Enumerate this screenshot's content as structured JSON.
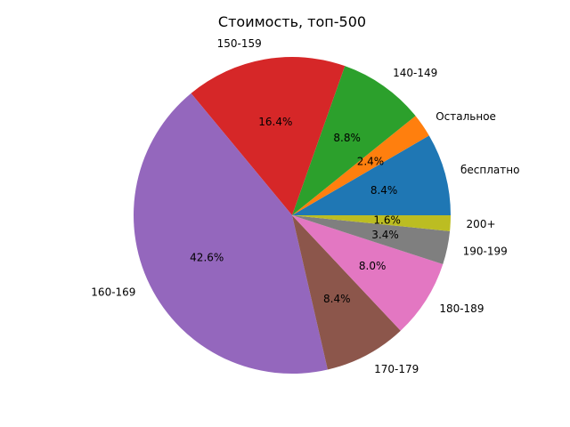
{
  "chart_data": {
    "type": "pie",
    "title": "Стоимость, топ-500",
    "start_angle_deg": 0,
    "direction": "counterclockwise",
    "slices": [
      {
        "label": "бесплатно",
        "value": 8.4,
        "pct_label": "8.4%",
        "color": "#1f77b4"
      },
      {
        "label": "Остальное",
        "value": 2.4,
        "pct_label": "2.4%",
        "color": "#ff7f0e"
      },
      {
        "label": "140-149",
        "value": 8.8,
        "pct_label": "8.8%",
        "color": "#2ca02c"
      },
      {
        "label": "150-159",
        "value": 16.4,
        "pct_label": "16.4%",
        "color": "#d62728"
      },
      {
        "label": "160-169",
        "value": 42.6,
        "pct_label": "42.6%",
        "color": "#9467bd"
      },
      {
        "label": "170-179",
        "value": 8.4,
        "pct_label": "8.4%",
        "color": "#8c564b"
      },
      {
        "label": "180-189",
        "value": 8.0,
        "pct_label": "8.0%",
        "color": "#e377c2"
      },
      {
        "label": "190-199",
        "value": 3.4,
        "pct_label": "3.4%",
        "color": "#7f7f7f"
      },
      {
        "label": "200+",
        "value": 1.6,
        "pct_label": "1.6%",
        "color": "#bcbd22"
      }
    ]
  }
}
